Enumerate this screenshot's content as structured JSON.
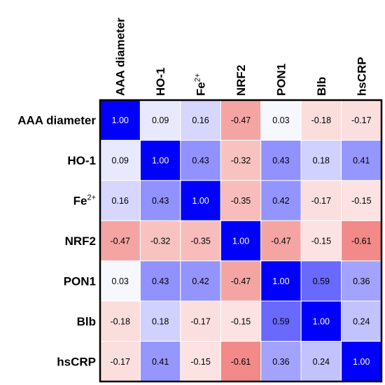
{
  "chart_data": {
    "type": "heatmap",
    "labels": [
      {
        "base": "AAA diameter",
        "sup": ""
      },
      {
        "base": "HO-1",
        "sup": ""
      },
      {
        "base": "Fe",
        "sup": "2+"
      },
      {
        "base": "NRF2",
        "sup": ""
      },
      {
        "base": "PON1",
        "sup": ""
      },
      {
        "base": "Blb",
        "sup": ""
      },
      {
        "base": "hsCRP",
        "sup": ""
      }
    ],
    "values": [
      [
        1.0,
        0.09,
        0.16,
        -0.47,
        0.03,
        -0.18,
        -0.17
      ],
      [
        0.09,
        1.0,
        0.43,
        -0.32,
        0.43,
        0.18,
        0.41
      ],
      [
        0.16,
        0.43,
        1.0,
        -0.35,
        0.42,
        -0.17,
        -0.15
      ],
      [
        -0.47,
        -0.32,
        -0.35,
        1.0,
        -0.47,
        -0.15,
        -0.61
      ],
      [
        0.03,
        0.43,
        0.42,
        -0.47,
        1.0,
        0.59,
        0.36
      ],
      [
        -0.18,
        0.18,
        -0.17,
        -0.15,
        0.59,
        1.0,
        0.24
      ],
      [
        -0.17,
        0.41,
        -0.15,
        -0.61,
        0.36,
        0.24,
        1.0
      ]
    ],
    "value_format": "0.00",
    "color_scale": {
      "negative": "#e8403c",
      "zero": "#ffffff",
      "positive": "#0000ff",
      "range": [
        -1,
        1
      ]
    },
    "border_color": "#000000",
    "grid_color": "#ffffff",
    "legend": "none"
  }
}
